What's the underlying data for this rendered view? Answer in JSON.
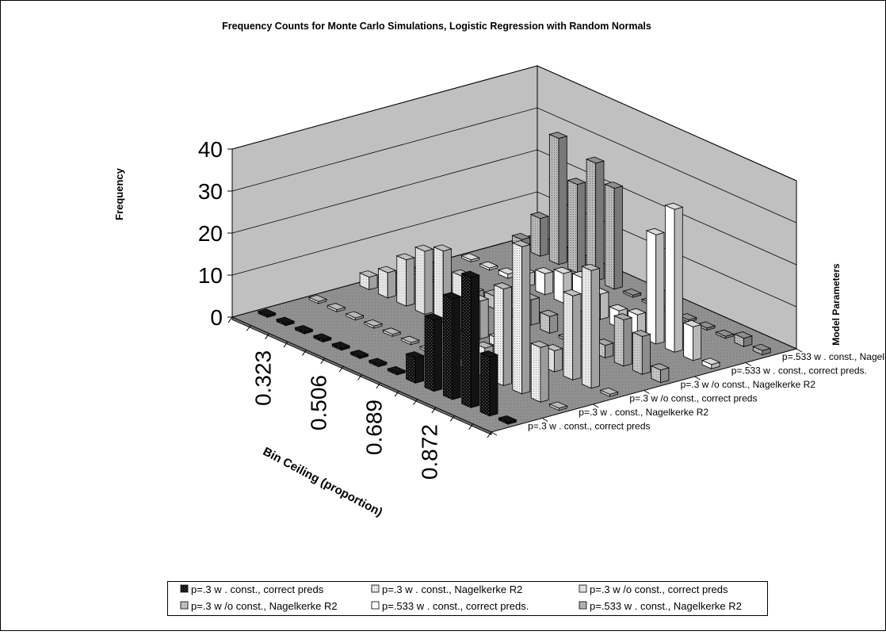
{
  "chart_data": {
    "type": "bar",
    "subtype": "3d-column",
    "title": "Frequency Counts for Monte Carlo Simulations, Logistic Regression with Random Normals",
    "xlabel": "Bin Ceiling (proportion)",
    "ylabel": "Frequency",
    "zlabel": "Model Parameters",
    "ylim": [
      0,
      40
    ],
    "y_ticks": [
      0,
      10,
      20,
      30,
      40
    ],
    "grid": true,
    "legend_position": "bottom",
    "x_tick_labels": [
      "0.323",
      "0.506",
      "0.689",
      "0.872"
    ],
    "categories": [
      "",
      "",
      "0.323",
      "",
      "",
      "0.506",
      "",
      "",
      "0.689",
      "",
      "",
      "0.872",
      "",
      ""
    ],
    "series": [
      {
        "name": "p=.3 w . const., correct preds",
        "color": "#1a1a1a",
        "values": [
          0,
          0,
          0,
          0,
          0,
          0,
          0,
          0,
          6,
          17,
          24,
          31,
          14,
          0
        ]
      },
      {
        "name": "p=.3 w . const., Nagelkerke R2",
        "color": "#d9d9d9",
        "values": [
          0,
          0,
          0,
          0,
          0,
          0,
          0,
          0,
          2,
          7,
          23,
          35,
          13,
          0
        ]
      },
      {
        "name": "p=.3 w /o const., correct preds",
        "color": "#e0e0e0",
        "values": [
          3,
          6,
          11,
          15,
          17,
          13,
          9,
          2,
          0,
          0,
          5,
          20,
          28,
          0
        ]
      },
      {
        "name": "p=.3 w /o const., Nagelkerke R2",
        "color": "#c4c4c4",
        "values": [
          0,
          0,
          0,
          2,
          3,
          2,
          6,
          4,
          0,
          0,
          3,
          11,
          9,
          3
        ]
      },
      {
        "name": "p=.533 w . const., correct preds.",
        "color": "#ffffff",
        "values": [
          0,
          0,
          1,
          3,
          5,
          7,
          8,
          6,
          4,
          5,
          26,
          34,
          8,
          1
        ]
      },
      {
        "name": "p=.533 w . const., Nagelkerke R2",
        "color": "#a8a8a8",
        "values": [
          2,
          9,
          30,
          21,
          28,
          24,
          0,
          0,
          0,
          0,
          0,
          0,
          2,
          1
        ]
      }
    ]
  }
}
